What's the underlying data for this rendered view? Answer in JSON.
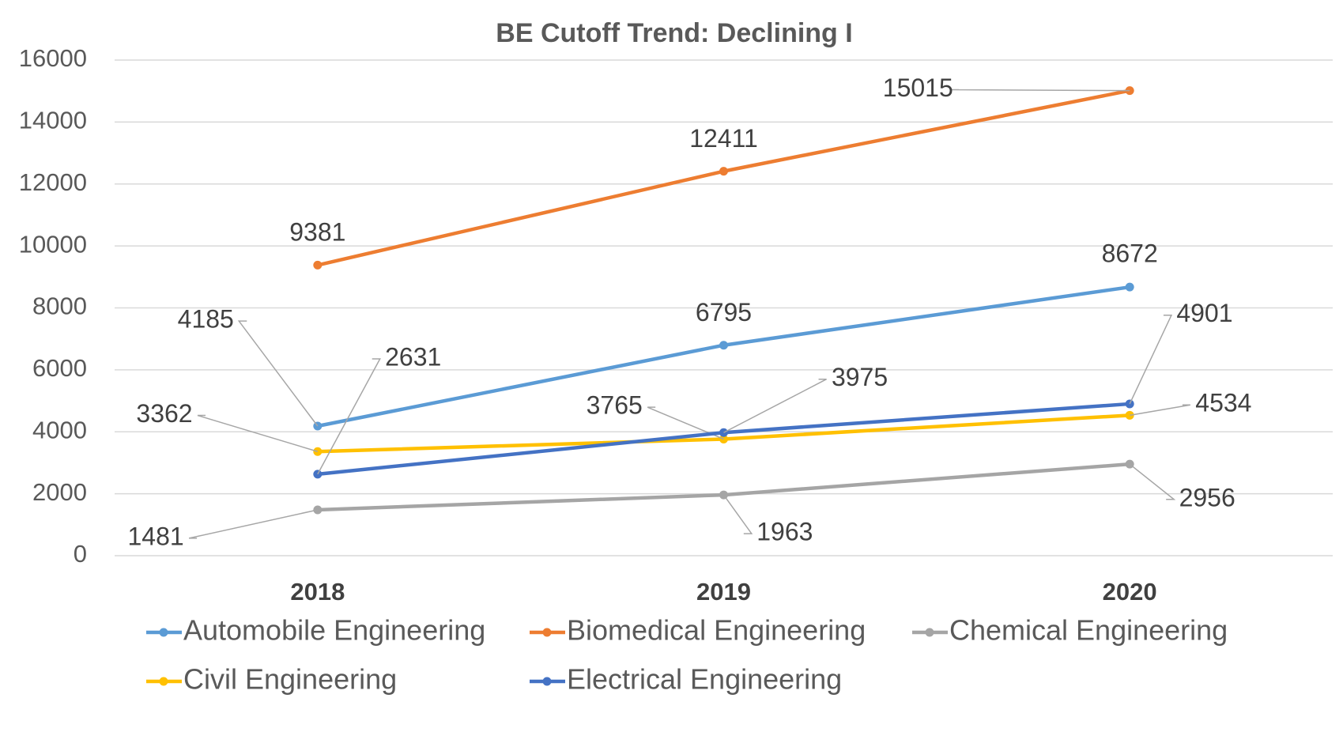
{
  "chart_data": {
    "type": "line",
    "title": "BE Cutoff Trend: Declining I",
    "categories": [
      "2018",
      "2019",
      "2020"
    ],
    "series": [
      {
        "name": "Automobile Engineering",
        "color": "#5b9bd5",
        "values": [
          4185,
          6795,
          8672
        ]
      },
      {
        "name": "Biomedical Engineering",
        "color": "#ed7d31",
        "values": [
          9381,
          12411,
          15015
        ]
      },
      {
        "name": "Chemical Engineering",
        "color": "#a5a5a5",
        "values": [
          1481,
          1963,
          2956
        ]
      },
      {
        "name": "Civil Engineering",
        "color": "#ffc000",
        "values": [
          3362,
          3765,
          4534
        ]
      },
      {
        "name": "Electrical Engineering",
        "color": "#4472c4",
        "values": [
          2631,
          3975,
          4901
        ]
      }
    ],
    "ylim": [
      0,
      16000
    ],
    "yticks": [
      0,
      2000,
      4000,
      6000,
      8000,
      10000,
      12000,
      14000,
      16000
    ],
    "grid": true,
    "legend": "bottom"
  }
}
